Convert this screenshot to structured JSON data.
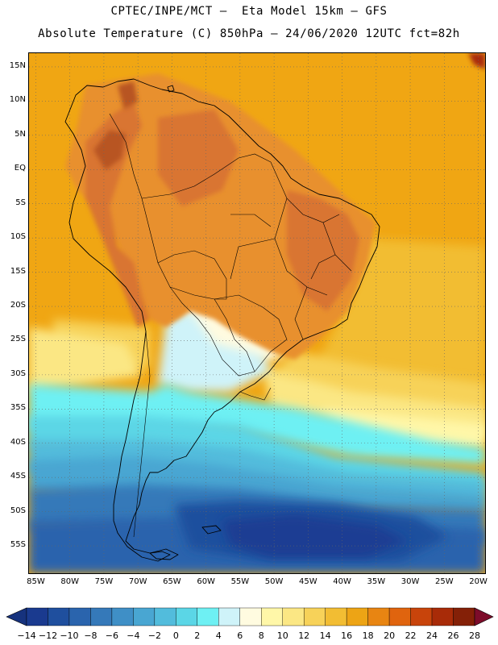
{
  "header": {
    "line1": "CPTEC/INPE/MCT –  Eta Model 15km – GFS",
    "line2": "Absolute Temperature (C) 850hPa – 24/06/2020 12UTC fct=82h"
  },
  "map": {
    "lon_range": [
      -86,
      -19
    ],
    "lat_range": [
      -59,
      17
    ],
    "lat_ticks": [
      {
        "value": 15,
        "label": "15N"
      },
      {
        "value": 10,
        "label": "10N"
      },
      {
        "value": 5,
        "label": "5N"
      },
      {
        "value": 0,
        "label": "EQ"
      },
      {
        "value": -5,
        "label": "5S"
      },
      {
        "value": -10,
        "label": "10S"
      },
      {
        "value": -15,
        "label": "15S"
      },
      {
        "value": -20,
        "label": "20S"
      },
      {
        "value": -25,
        "label": "25S"
      },
      {
        "value": -30,
        "label": "30S"
      },
      {
        "value": -35,
        "label": "35S"
      },
      {
        "value": -40,
        "label": "40S"
      },
      {
        "value": -45,
        "label": "45S"
      },
      {
        "value": -50,
        "label": "50S"
      },
      {
        "value": -55,
        "label": "55S"
      }
    ],
    "lon_ticks": [
      {
        "value": -85,
        "label": "85W"
      },
      {
        "value": -80,
        "label": "80W"
      },
      {
        "value": -75,
        "label": "75W"
      },
      {
        "value": -70,
        "label": "70W"
      },
      {
        "value": -65,
        "label": "65W"
      },
      {
        "value": -60,
        "label": "60W"
      },
      {
        "value": -55,
        "label": "55W"
      },
      {
        "value": -50,
        "label": "50W"
      },
      {
        "value": -45,
        "label": "45W"
      },
      {
        "value": -40,
        "label": "40W"
      },
      {
        "value": -35,
        "label": "35W"
      },
      {
        "value": -30,
        "label": "30W"
      },
      {
        "value": -25,
        "label": "25W"
      },
      {
        "value": -20,
        "label": "20W"
      }
    ]
  },
  "colorbar": {
    "labels": [
      "-14",
      "-12",
      "-10",
      "-8",
      "-6",
      "-4",
      "-2",
      "0",
      "2",
      "4",
      "6",
      "8",
      "10",
      "12",
      "14",
      "16",
      "18",
      "20",
      "22",
      "24",
      "26",
      "28"
    ],
    "colors": [
      "#1a3a8f",
      "#1f4f9e",
      "#2a64ad",
      "#3579b9",
      "#3f8fc6",
      "#49a6d2",
      "#52bcdc",
      "#5bd6e6",
      "#6ef0f3",
      "#cff3f9",
      "#fffbe0",
      "#fff7a8",
      "#fbe784",
      "#f7d259",
      "#f2bd33",
      "#eda415",
      "#e88512",
      "#e0640e",
      "#c8440b",
      "#a82b08",
      "#842007"
    ],
    "under_color": "#16327d",
    "over_color": "#7d0c2a"
  },
  "colors": {
    "ocean_warm": "#f0a613",
    "land_warm": "#e8902e",
    "highlands": "#d97530",
    "andes_peak": "#b85420",
    "cold_core": "#1b3c93"
  }
}
